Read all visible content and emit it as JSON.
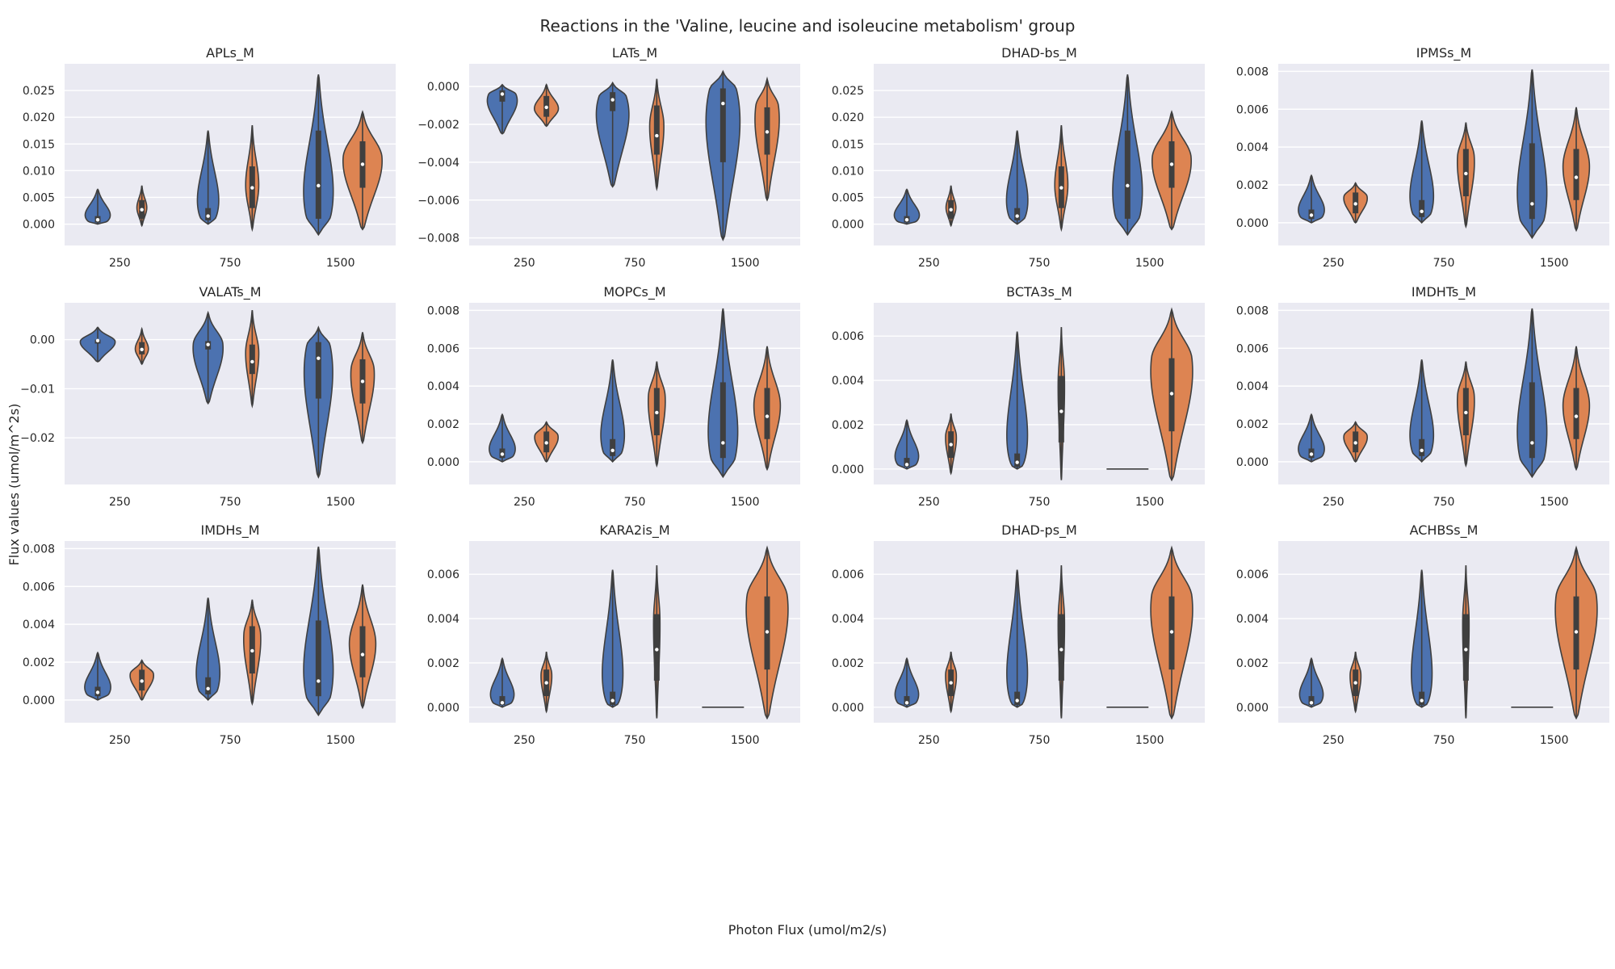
{
  "title": "Reactions in the 'Valine, leucine and isoleucine metabolism' group",
  "xlabel": "Photon Flux (umol/m2/s)",
  "ylabel": "Flux values (umol/m^2s)",
  "colors": {
    "series_a": "#4c72b0",
    "series_b": "#dd8452",
    "axes_bg": "#eaeaf2",
    "grid": "#ffffff"
  },
  "chart_data": [
    {
      "type": "violin",
      "title": "APLs_M",
      "categories": [
        "250",
        "750",
        "1500"
      ],
      "ylim": [
        -0.004,
        0.03
      ],
      "yticks": [
        0.0,
        0.005,
        0.01,
        0.015,
        0.02,
        0.025
      ],
      "series": [
        [
          {
            "min": 0.0,
            "max": 0.0065,
            "median": 0.0008,
            "q1": 0.0003,
            "q3": 0.0015,
            "peak": 0.0005,
            "width": 0.28
          },
          {
            "min": 0.0,
            "max": 0.0175,
            "median": 0.0015,
            "q1": 0.0007,
            "q3": 0.003,
            "peak": 0.0012,
            "width": 0.24
          },
          {
            "min": -0.002,
            "max": 0.028,
            "median": 0.0072,
            "q1": 0.001,
            "q3": 0.0175,
            "peak": 0.0015,
            "width": 0.32
          }
        ],
        [
          {
            "min": -0.0003,
            "max": 0.0072,
            "median": 0.0027,
            "q1": 0.001,
            "q3": 0.0045,
            "peak": 0.003,
            "width": 0.09
          },
          {
            "min": -0.001,
            "max": 0.0185,
            "median": 0.0068,
            "q1": 0.003,
            "q3": 0.0108,
            "peak": 0.007,
            "width": 0.12
          },
          {
            "min": -0.001,
            "max": 0.021,
            "median": 0.0112,
            "q1": 0.0068,
            "q3": 0.0155,
            "peak": 0.0125,
            "width": 0.36
          }
        ]
      ]
    },
    {
      "type": "violin",
      "title": "LATs_M",
      "categories": [
        "250",
        "750",
        "1500"
      ],
      "ylim": [
        -0.0084,
        0.0012
      ],
      "yticks": [
        -0.008,
        -0.006,
        -0.004,
        -0.002,
        0.0
      ],
      "series": [
        [
          {
            "min": -0.0025,
            "max": 0.0001,
            "median": -0.0004,
            "q1": -0.0008,
            "q3": -0.0002,
            "peak": -0.0004,
            "width": 0.3
          },
          {
            "min": -0.0053,
            "max": 0.0002,
            "median": -0.0007,
            "q1": -0.0013,
            "q3": -0.0003,
            "peak": -0.0005,
            "width": 0.34
          },
          {
            "min": -0.0081,
            "max": 0.0008,
            "median": -0.0009,
            "q1": -0.004,
            "q3": -0.0001,
            "peak": -0.0001,
            "width": 0.36
          }
        ],
        [
          {
            "min": -0.0021,
            "max": 0.0001,
            "median": -0.0011,
            "q1": -0.0016,
            "q3": -0.0005,
            "peak": -0.0012,
            "width": 0.22
          },
          {
            "min": -0.0054,
            "max": 0.0004,
            "median": -0.0026,
            "q1": -0.0036,
            "q3": -0.001,
            "peak": -0.002,
            "width": 0.13
          },
          {
            "min": -0.006,
            "max": 0.0004,
            "median": -0.0024,
            "q1": -0.0036,
            "q3": -0.0011,
            "peak": -0.001,
            "width": 0.24
          }
        ]
      ]
    },
    {
      "type": "violin",
      "title": "DHAD-bs_M",
      "categories": [
        "250",
        "750",
        "1500"
      ],
      "ylim": [
        -0.004,
        0.03
      ],
      "yticks": [
        0.0,
        0.005,
        0.01,
        0.015,
        0.02,
        0.025
      ],
      "series": [
        [
          {
            "min": 0.0,
            "max": 0.0065,
            "median": 0.0008,
            "q1": 0.0003,
            "q3": 0.0015,
            "peak": 0.0005,
            "width": 0.28
          },
          {
            "min": 0.0,
            "max": 0.0175,
            "median": 0.0015,
            "q1": 0.0007,
            "q3": 0.003,
            "peak": 0.0012,
            "width": 0.24
          },
          {
            "min": -0.002,
            "max": 0.028,
            "median": 0.0072,
            "q1": 0.001,
            "q3": 0.0175,
            "peak": 0.0015,
            "width": 0.32
          }
        ],
        [
          {
            "min": -0.0003,
            "max": 0.0072,
            "median": 0.0027,
            "q1": 0.001,
            "q3": 0.0045,
            "peak": 0.003,
            "width": 0.09
          },
          {
            "min": -0.001,
            "max": 0.0185,
            "median": 0.0068,
            "q1": 0.003,
            "q3": 0.0108,
            "peak": 0.007,
            "width": 0.12
          },
          {
            "min": -0.001,
            "max": 0.021,
            "median": 0.0112,
            "q1": 0.0068,
            "q3": 0.0155,
            "peak": 0.0125,
            "width": 0.36
          }
        ]
      ]
    },
    {
      "type": "violin",
      "title": "IPMSs_M",
      "categories": [
        "250",
        "750",
        "1500"
      ],
      "ylim": [
        -0.0012,
        0.0084
      ],
      "yticks": [
        0.0,
        0.002,
        0.004,
        0.006,
        0.008
      ],
      "series": [
        [
          {
            "min": 0.0,
            "max": 0.0025,
            "median": 0.0004,
            "q1": 0.0002,
            "q3": 0.0007,
            "peak": 0.0003,
            "width": 0.28
          },
          {
            "min": 0.0,
            "max": 0.0054,
            "median": 0.0006,
            "q1": 0.0003,
            "q3": 0.0012,
            "peak": 0.0005,
            "width": 0.26
          },
          {
            "min": -0.0008,
            "max": 0.0081,
            "median": 0.001,
            "q1": 0.0002,
            "q3": 0.0042,
            "peak": 0.0002,
            "width": 0.32
          }
        ],
        [
          {
            "min": 0.0,
            "max": 0.0021,
            "median": 0.001,
            "q1": 0.0005,
            "q3": 0.0016,
            "peak": 0.0014,
            "width": 0.22
          },
          {
            "min": -0.0002,
            "max": 0.0053,
            "median": 0.0026,
            "q1": 0.0014,
            "q3": 0.0039,
            "peak": 0.0035,
            "width": 0.16
          },
          {
            "min": -0.0004,
            "max": 0.0061,
            "median": 0.0024,
            "q1": 0.0012,
            "q3": 0.0039,
            "peak": 0.003,
            "width": 0.24
          }
        ]
      ]
    },
    {
      "type": "violin",
      "title": "VALATs_M",
      "categories": [
        "250",
        "750",
        "1500"
      ],
      "ylim": [
        -0.0295,
        0.0075
      ],
      "yticks": [
        -0.02,
        -0.01,
        0.0
      ],
      "series": [
        [
          {
            "min": -0.0045,
            "max": 0.0025,
            "median": -0.0002,
            "q1": -0.0008,
            "q3": 0.0,
            "peak": -0.0003,
            "width": 0.32
          },
          {
            "min": -0.013,
            "max": 0.0055,
            "median": -0.001,
            "q1": -0.002,
            "q3": -0.0003,
            "peak": -0.0008,
            "width": 0.28
          },
          {
            "min": -0.028,
            "max": 0.0025,
            "median": -0.0038,
            "q1": -0.012,
            "q3": -0.0005,
            "peak": -0.001,
            "width": 0.3
          }
        ],
        [
          {
            "min": -0.005,
            "max": 0.0022,
            "median": -0.002,
            "q1": -0.003,
            "q3": -0.0005,
            "peak": -0.002,
            "width": 0.12
          },
          {
            "min": -0.0135,
            "max": 0.006,
            "median": -0.0045,
            "q1": -0.007,
            "q3": -0.001,
            "peak": -0.0025,
            "width": 0.12
          },
          {
            "min": -0.021,
            "max": 0.0015,
            "median": -0.0085,
            "q1": -0.013,
            "q3": -0.004,
            "peak": -0.006,
            "width": 0.22
          }
        ]
      ]
    },
    {
      "type": "violin",
      "title": "MOPCs_M",
      "categories": [
        "250",
        "750",
        "1500"
      ],
      "ylim": [
        -0.0012,
        0.0084
      ],
      "yticks": [
        0.0,
        0.002,
        0.004,
        0.006,
        0.008
      ],
      "series": [
        [
          {
            "min": 0.0,
            "max": 0.0025,
            "median": 0.0004,
            "q1": 0.0002,
            "q3": 0.0007,
            "peak": 0.0003,
            "width": 0.28
          },
          {
            "min": 0.0,
            "max": 0.0054,
            "median": 0.0006,
            "q1": 0.0003,
            "q3": 0.0012,
            "peak": 0.0005,
            "width": 0.26
          },
          {
            "min": -0.0008,
            "max": 0.0081,
            "median": 0.001,
            "q1": 0.0002,
            "q3": 0.0042,
            "peak": 0.0002,
            "width": 0.32
          }
        ],
        [
          {
            "min": 0.0,
            "max": 0.0021,
            "median": 0.001,
            "q1": 0.0005,
            "q3": 0.0016,
            "peak": 0.0014,
            "width": 0.22
          },
          {
            "min": -0.0002,
            "max": 0.0053,
            "median": 0.0026,
            "q1": 0.0014,
            "q3": 0.0039,
            "peak": 0.0035,
            "width": 0.16
          },
          {
            "min": -0.0004,
            "max": 0.0061,
            "median": 0.0024,
            "q1": 0.0012,
            "q3": 0.0039,
            "peak": 0.003,
            "width": 0.24
          }
        ]
      ]
    },
    {
      "type": "violin",
      "title": "BCTA3s_M",
      "categories": [
        "250",
        "750",
        "1500"
      ],
      "ylim": [
        -0.0007,
        0.0075
      ],
      "yticks": [
        0.0,
        0.002,
        0.004,
        0.006
      ],
      "series": [
        [
          {
            "min": 0.0,
            "max": 0.0022,
            "median": 0.0002,
            "q1": 0.0001,
            "q3": 0.0005,
            "peak": 0.0002,
            "width": 0.26
          },
          {
            "min": 0.0,
            "max": 0.0062,
            "median": 0.0003,
            "q1": 0.0001,
            "q3": 0.0007,
            "peak": 0.0002,
            "width": 0.24
          },
          {
            "min": 0.0,
            "max": 0.0,
            "median": 0.0,
            "q1": 0.0,
            "q3": 0.0,
            "peak": 0.0,
            "width": 0.38
          }
        ],
        [
          {
            "min": -0.0002,
            "max": 0.0025,
            "median": 0.0011,
            "q1": 0.0005,
            "q3": 0.0017,
            "peak": 0.0015,
            "width": 0.1
          },
          {
            "min": -0.0005,
            "max": 0.0064,
            "median": 0.0026,
            "q1": 0.0012,
            "q3": 0.0042,
            "peak": 0.004,
            "width": 0.06
          },
          {
            "min": -0.0005,
            "max": 0.0072,
            "median": 0.0034,
            "q1": 0.0017,
            "q3": 0.005,
            "peak": 0.005,
            "width": 0.4
          }
        ]
      ]
    },
    {
      "type": "violin",
      "title": "IMDHTs_M",
      "categories": [
        "250",
        "750",
        "1500"
      ],
      "ylim": [
        -0.0012,
        0.0084
      ],
      "yticks": [
        0.0,
        0.002,
        0.004,
        0.006,
        0.008
      ],
      "series": [
        [
          {
            "min": 0.0,
            "max": 0.0025,
            "median": 0.0004,
            "q1": 0.0002,
            "q3": 0.0007,
            "peak": 0.0003,
            "width": 0.28
          },
          {
            "min": 0.0,
            "max": 0.0054,
            "median": 0.0006,
            "q1": 0.0003,
            "q3": 0.0012,
            "peak": 0.0005,
            "width": 0.26
          },
          {
            "min": -0.0008,
            "max": 0.0081,
            "median": 0.001,
            "q1": 0.0002,
            "q3": 0.0042,
            "peak": 0.0002,
            "width": 0.32
          }
        ],
        [
          {
            "min": 0.0,
            "max": 0.0021,
            "median": 0.001,
            "q1": 0.0005,
            "q3": 0.0016,
            "peak": 0.0014,
            "width": 0.22
          },
          {
            "min": -0.0002,
            "max": 0.0053,
            "median": 0.0026,
            "q1": 0.0014,
            "q3": 0.0039,
            "peak": 0.0035,
            "width": 0.16
          },
          {
            "min": -0.0004,
            "max": 0.0061,
            "median": 0.0024,
            "q1": 0.0012,
            "q3": 0.0039,
            "peak": 0.003,
            "width": 0.24
          }
        ]
      ]
    },
    {
      "type": "violin",
      "title": "IMDHs_M",
      "categories": [
        "250",
        "750",
        "1500"
      ],
      "ylim": [
        -0.0012,
        0.0084
      ],
      "yticks": [
        0.0,
        0.002,
        0.004,
        0.006,
        0.008
      ],
      "series": [
        [
          {
            "min": 0.0,
            "max": 0.0025,
            "median": 0.0004,
            "q1": 0.0002,
            "q3": 0.0007,
            "peak": 0.0003,
            "width": 0.28
          },
          {
            "min": 0.0,
            "max": 0.0054,
            "median": 0.0006,
            "q1": 0.0003,
            "q3": 0.0012,
            "peak": 0.0005,
            "width": 0.26
          },
          {
            "min": -0.0008,
            "max": 0.0081,
            "median": 0.001,
            "q1": 0.0002,
            "q3": 0.0042,
            "peak": 0.0002,
            "width": 0.32
          }
        ],
        [
          {
            "min": 0.0,
            "max": 0.0021,
            "median": 0.001,
            "q1": 0.0005,
            "q3": 0.0016,
            "peak": 0.0014,
            "width": 0.22
          },
          {
            "min": -0.0002,
            "max": 0.0053,
            "median": 0.0026,
            "q1": 0.0014,
            "q3": 0.0039,
            "peak": 0.0035,
            "width": 0.16
          },
          {
            "min": -0.0004,
            "max": 0.0061,
            "median": 0.0024,
            "q1": 0.0012,
            "q3": 0.0039,
            "peak": 0.003,
            "width": 0.24
          }
        ]
      ]
    },
    {
      "type": "violin",
      "title": "KARA2is_M",
      "categories": [
        "250",
        "750",
        "1500"
      ],
      "ylim": [
        -0.0007,
        0.0075
      ],
      "yticks": [
        0.0,
        0.002,
        0.004,
        0.006
      ],
      "series": [
        [
          {
            "min": 0.0,
            "max": 0.0022,
            "median": 0.0002,
            "q1": 0.0001,
            "q3": 0.0005,
            "peak": 0.0002,
            "width": 0.26
          },
          {
            "min": 0.0,
            "max": 0.0062,
            "median": 0.0003,
            "q1": 0.0001,
            "q3": 0.0007,
            "peak": 0.0002,
            "width": 0.24
          },
          {
            "min": 0.0,
            "max": 0.0,
            "median": 0.0,
            "q1": 0.0,
            "q3": 0.0,
            "peak": 0.0,
            "width": 0.38
          }
        ],
        [
          {
            "min": -0.0002,
            "max": 0.0025,
            "median": 0.0011,
            "q1": 0.0005,
            "q3": 0.0017,
            "peak": 0.0015,
            "width": 0.1
          },
          {
            "min": -0.0005,
            "max": 0.0064,
            "median": 0.0026,
            "q1": 0.0012,
            "q3": 0.0042,
            "peak": 0.004,
            "width": 0.06
          },
          {
            "min": -0.0005,
            "max": 0.0072,
            "median": 0.0034,
            "q1": 0.0017,
            "q3": 0.005,
            "peak": 0.005,
            "width": 0.4
          }
        ]
      ]
    },
    {
      "type": "violin",
      "title": "DHAD-ps_M",
      "categories": [
        "250",
        "750",
        "1500"
      ],
      "ylim": [
        -0.0007,
        0.0075
      ],
      "yticks": [
        0.0,
        0.002,
        0.004,
        0.006
      ],
      "series": [
        [
          {
            "min": 0.0,
            "max": 0.0022,
            "median": 0.0002,
            "q1": 0.0001,
            "q3": 0.0005,
            "peak": 0.0002,
            "width": 0.26
          },
          {
            "min": 0.0,
            "max": 0.0062,
            "median": 0.0003,
            "q1": 0.0001,
            "q3": 0.0007,
            "peak": 0.0002,
            "width": 0.24
          },
          {
            "min": 0.0,
            "max": 0.0,
            "median": 0.0,
            "q1": 0.0,
            "q3": 0.0,
            "peak": 0.0,
            "width": 0.38
          }
        ],
        [
          {
            "min": -0.0002,
            "max": 0.0025,
            "median": 0.0011,
            "q1": 0.0005,
            "q3": 0.0017,
            "peak": 0.0015,
            "width": 0.1
          },
          {
            "min": -0.0005,
            "max": 0.0064,
            "median": 0.0026,
            "q1": 0.0012,
            "q3": 0.0042,
            "peak": 0.004,
            "width": 0.06
          },
          {
            "min": -0.0005,
            "max": 0.0072,
            "median": 0.0034,
            "q1": 0.0017,
            "q3": 0.005,
            "peak": 0.005,
            "width": 0.4
          }
        ]
      ]
    },
    {
      "type": "violin",
      "title": "ACHBSs_M",
      "categories": [
        "250",
        "750",
        "1500"
      ],
      "ylim": [
        -0.0007,
        0.0075
      ],
      "yticks": [
        0.0,
        0.002,
        0.004,
        0.006
      ],
      "series": [
        [
          {
            "min": 0.0,
            "max": 0.0022,
            "median": 0.0002,
            "q1": 0.0001,
            "q3": 0.0005,
            "peak": 0.0002,
            "width": 0.26
          },
          {
            "min": 0.0,
            "max": 0.0062,
            "median": 0.0003,
            "q1": 0.0001,
            "q3": 0.0007,
            "peak": 0.0002,
            "width": 0.24
          },
          {
            "min": 0.0,
            "max": 0.0,
            "median": 0.0,
            "q1": 0.0,
            "q3": 0.0,
            "peak": 0.0,
            "width": 0.38
          }
        ],
        [
          {
            "min": -0.0002,
            "max": 0.0025,
            "median": 0.0011,
            "q1": 0.0005,
            "q3": 0.0017,
            "peak": 0.0015,
            "width": 0.1
          },
          {
            "min": -0.0005,
            "max": 0.0064,
            "median": 0.0026,
            "q1": 0.0012,
            "q3": 0.0042,
            "peak": 0.004,
            "width": 0.06
          },
          {
            "min": -0.0005,
            "max": 0.0072,
            "median": 0.0034,
            "q1": 0.0017,
            "q3": 0.005,
            "peak": 0.005,
            "width": 0.4
          }
        ]
      ]
    }
  ]
}
